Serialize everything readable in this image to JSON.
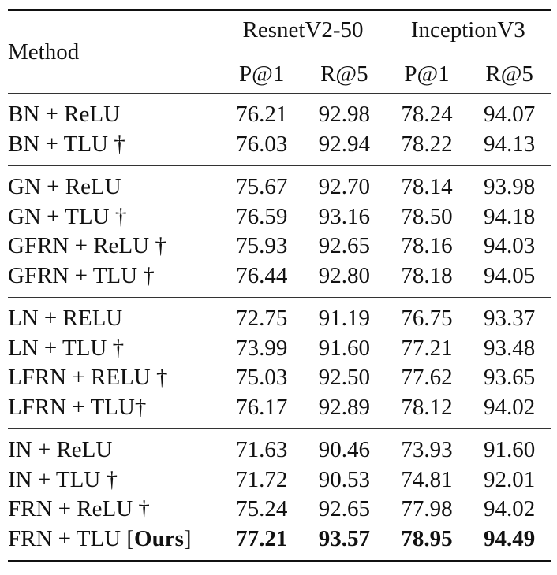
{
  "header": {
    "method": "Method",
    "groups": [
      "ResnetV2-50",
      "InceptionV3"
    ],
    "metrics": [
      "P@1",
      "R@5",
      "P@1",
      "R@5"
    ]
  },
  "rows": [
    {
      "method": "BN + ReLU",
      "values": [
        "76.21",
        "92.98",
        "78.24",
        "94.07"
      ]
    },
    {
      "method": "BN + TLU †",
      "values": [
        "76.03",
        "92.94",
        "78.22",
        "94.13"
      ]
    },
    {
      "method": "GN + ReLU",
      "values": [
        "75.67",
        "92.70",
        "78.14",
        "93.98"
      ]
    },
    {
      "method": "GN + TLU †",
      "values": [
        "76.59",
        "93.16",
        "78.50",
        "94.18"
      ]
    },
    {
      "method": "GFRN + ReLU †",
      "values": [
        "75.93",
        "92.65",
        "78.16",
        "94.03"
      ]
    },
    {
      "method": "GFRN + TLU †",
      "values": [
        "76.44",
        "92.80",
        "78.18",
        "94.05"
      ]
    },
    {
      "method": "LN + RELU",
      "values": [
        "72.75",
        "91.19",
        "76.75",
        "93.37"
      ]
    },
    {
      "method": "LN + TLU †",
      "values": [
        "73.99",
        "91.60",
        "77.21",
        "93.48"
      ]
    },
    {
      "method": "LFRN + RELU †",
      "values": [
        "75.03",
        "92.50",
        "77.62",
        "93.65"
      ]
    },
    {
      "method": "LFRN + TLU†",
      "values": [
        "76.17",
        "92.89",
        "78.12",
        "94.02"
      ]
    },
    {
      "method": "IN + ReLU",
      "values": [
        "71.63",
        "90.46",
        "73.93",
        "91.60"
      ]
    },
    {
      "method": "IN + TLU †",
      "values": [
        "71.72",
        "90.53",
        "74.81",
        "92.01"
      ]
    },
    {
      "method": "FRN + ReLU †",
      "values": [
        "75.24",
        "92.65",
        "77.98",
        "94.02"
      ]
    },
    {
      "method_prefix": "FRN + TLU [",
      "method_bold": "Ours",
      "method_suffix": "]",
      "values": [
        "77.21",
        "93.57",
        "78.95",
        "94.49"
      ]
    }
  ]
}
